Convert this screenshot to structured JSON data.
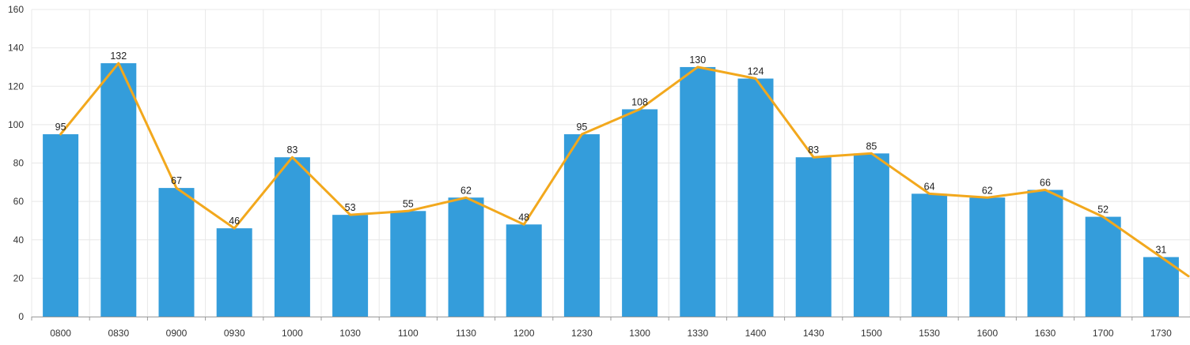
{
  "chart_data": {
    "type": "bar",
    "categories": [
      "0800",
      "0830",
      "0900",
      "0930",
      "1000",
      "1030",
      "1100",
      "1130",
      "1200",
      "1230",
      "1300",
      "1330",
      "1400",
      "1430",
      "1500",
      "1530",
      "1600",
      "1630",
      "1700",
      "1730"
    ],
    "series": [
      {
        "values": [
          95,
          132,
          67,
          46,
          83,
          53,
          55,
          62,
          48,
          95,
          108,
          130,
          124,
          83,
          85,
          64,
          62,
          66,
          52,
          31
        ]
      }
    ],
    "overlay_line": {
      "type": "line",
      "values": [
        95,
        132,
        67,
        46,
        83,
        53,
        55,
        62,
        48,
        95,
        108,
        130,
        124,
        83,
        85,
        64,
        62,
        66,
        52,
        31
      ]
    },
    "data_labels": true,
    "title": "",
    "xlabel": "",
    "ylabel": "",
    "ylim": [
      0,
      160
    ],
    "yticks": [
      0,
      20,
      40,
      60,
      80,
      100,
      120,
      140,
      160
    ],
    "grid": true,
    "colors": {
      "bar": "#349ddb",
      "line": "#f2a81d",
      "grid": "#e8e8e8",
      "axis": "#999999"
    }
  }
}
